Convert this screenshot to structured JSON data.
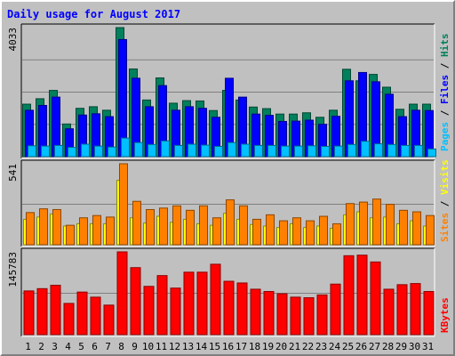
{
  "title": "Daily usage for August 2017",
  "colors": {
    "background": "#c0c0c0",
    "title": "#0000ff",
    "hits": "#00805c",
    "files": "#0000ff",
    "pages": "#00c0ff",
    "visits": "#ffff00",
    "sites": "#ff8000",
    "kbytes": "#ff0000",
    "weekend_label": "#00805c",
    "weekday_label": "#000000"
  },
  "legend": {
    "top": [
      {
        "label": "Pages",
        "color": "#00c0ff"
      },
      {
        "label": "Files",
        "color": "#0000ff"
      },
      {
        "label": "Hits",
        "color": "#00805c"
      }
    ],
    "middle": [
      {
        "label": "Sites",
        "color": "#ff8000"
      },
      {
        "label": "Visits",
        "color": "#ffff00"
      }
    ],
    "bottom": [
      {
        "label": "KBytes",
        "color": "#ff0000"
      }
    ],
    "separator": " / "
  },
  "chart_data": {
    "type": "bar",
    "title": "Daily usage for August 2017",
    "categories": [
      "1",
      "2",
      "3",
      "4",
      "5",
      "6",
      "7",
      "8",
      "9",
      "10",
      "11",
      "12",
      "13",
      "14",
      "15",
      "16",
      "17",
      "18",
      "19",
      "20",
      "21",
      "22",
      "23",
      "24",
      "25",
      "26",
      "27",
      "28",
      "29",
      "30",
      "31"
    ],
    "weekend_days": [
      "5",
      "6",
      "12",
      "13",
      "19",
      "20",
      "26",
      "27"
    ],
    "panels": [
      {
        "name": "hits-files-pages",
        "ymax_label": "4033",
        "ylim": [
          0,
          4033
        ],
        "series": [
          {
            "name": "Hits",
            "values": [
              1640,
              1810,
              2070,
              1020,
              1510,
              1560,
              1450,
              4033,
              2740,
              1770,
              2460,
              1670,
              1750,
              1740,
              1440,
              2070,
              1770,
              1550,
              1500,
              1330,
              1330,
              1370,
              1230,
              1450,
              2730,
              2370,
              2570,
              2170,
              1480,
              1640,
              1640
            ]
          },
          {
            "name": "Files",
            "values": [
              1450,
              1600,
              1860,
              870,
              1300,
              1340,
              1250,
              3660,
              2450,
              1560,
              2220,
              1450,
              1560,
              1510,
              1230,
              2450,
              1860,
              1330,
              1290,
              1100,
              1110,
              1140,
              1010,
              1260,
              2370,
              2630,
              2340,
              1950,
              1250,
              1450,
              1440
            ]
          },
          {
            "name": "Pages",
            "values": [
              340,
              330,
              350,
              290,
              390,
              330,
              300,
              580,
              440,
              380,
              490,
              350,
              390,
              360,
              320,
              440,
              390,
              350,
              350,
              330,
              330,
              340,
              320,
              330,
              380,
              480,
              400,
              380,
              350,
              350,
              240
            ]
          }
        ]
      },
      {
        "name": "visits-sites",
        "ymax_label": "541",
        "ylim": [
          0,
          541
        ],
        "series": [
          {
            "name": "Visits",
            "values": [
              170,
              185,
              205,
              125,
              140,
              140,
              140,
              430,
              180,
              145,
              190,
              150,
              170,
              140,
              130,
              210,
              170,
              135,
              125,
              115,
              140,
              115,
              125,
              110,
              200,
              220,
              180,
              185,
              140,
              160,
              125
            ]
          },
          {
            "name": "Sites",
            "values": [
              215,
              240,
              235,
              130,
              180,
              195,
              185,
              541,
              290,
              235,
              245,
              260,
              230,
              260,
              180,
              300,
              260,
              170,
              200,
              160,
              180,
              160,
              190,
              140,
              275,
              285,
              305,
              270,
              230,
              220,
              195
            ]
          }
        ]
      },
      {
        "name": "kbytes",
        "ymax_label": "145783",
        "ylim": [
          0,
          145783
        ],
        "series": [
          {
            "name": "KBytes",
            "values": [
              77000,
              81000,
              87000,
              55000,
              75000,
              66000,
              52000,
              145783,
              118000,
              85000,
              104000,
              82000,
              110000,
              110000,
              124000,
              94000,
              91000,
              80000,
              76000,
              72000,
              66000,
              65000,
              70000,
              89000,
              139000,
              140000,
              128000,
              80000,
              88000,
              90000,
              76000
            ]
          }
        ]
      }
    ]
  }
}
